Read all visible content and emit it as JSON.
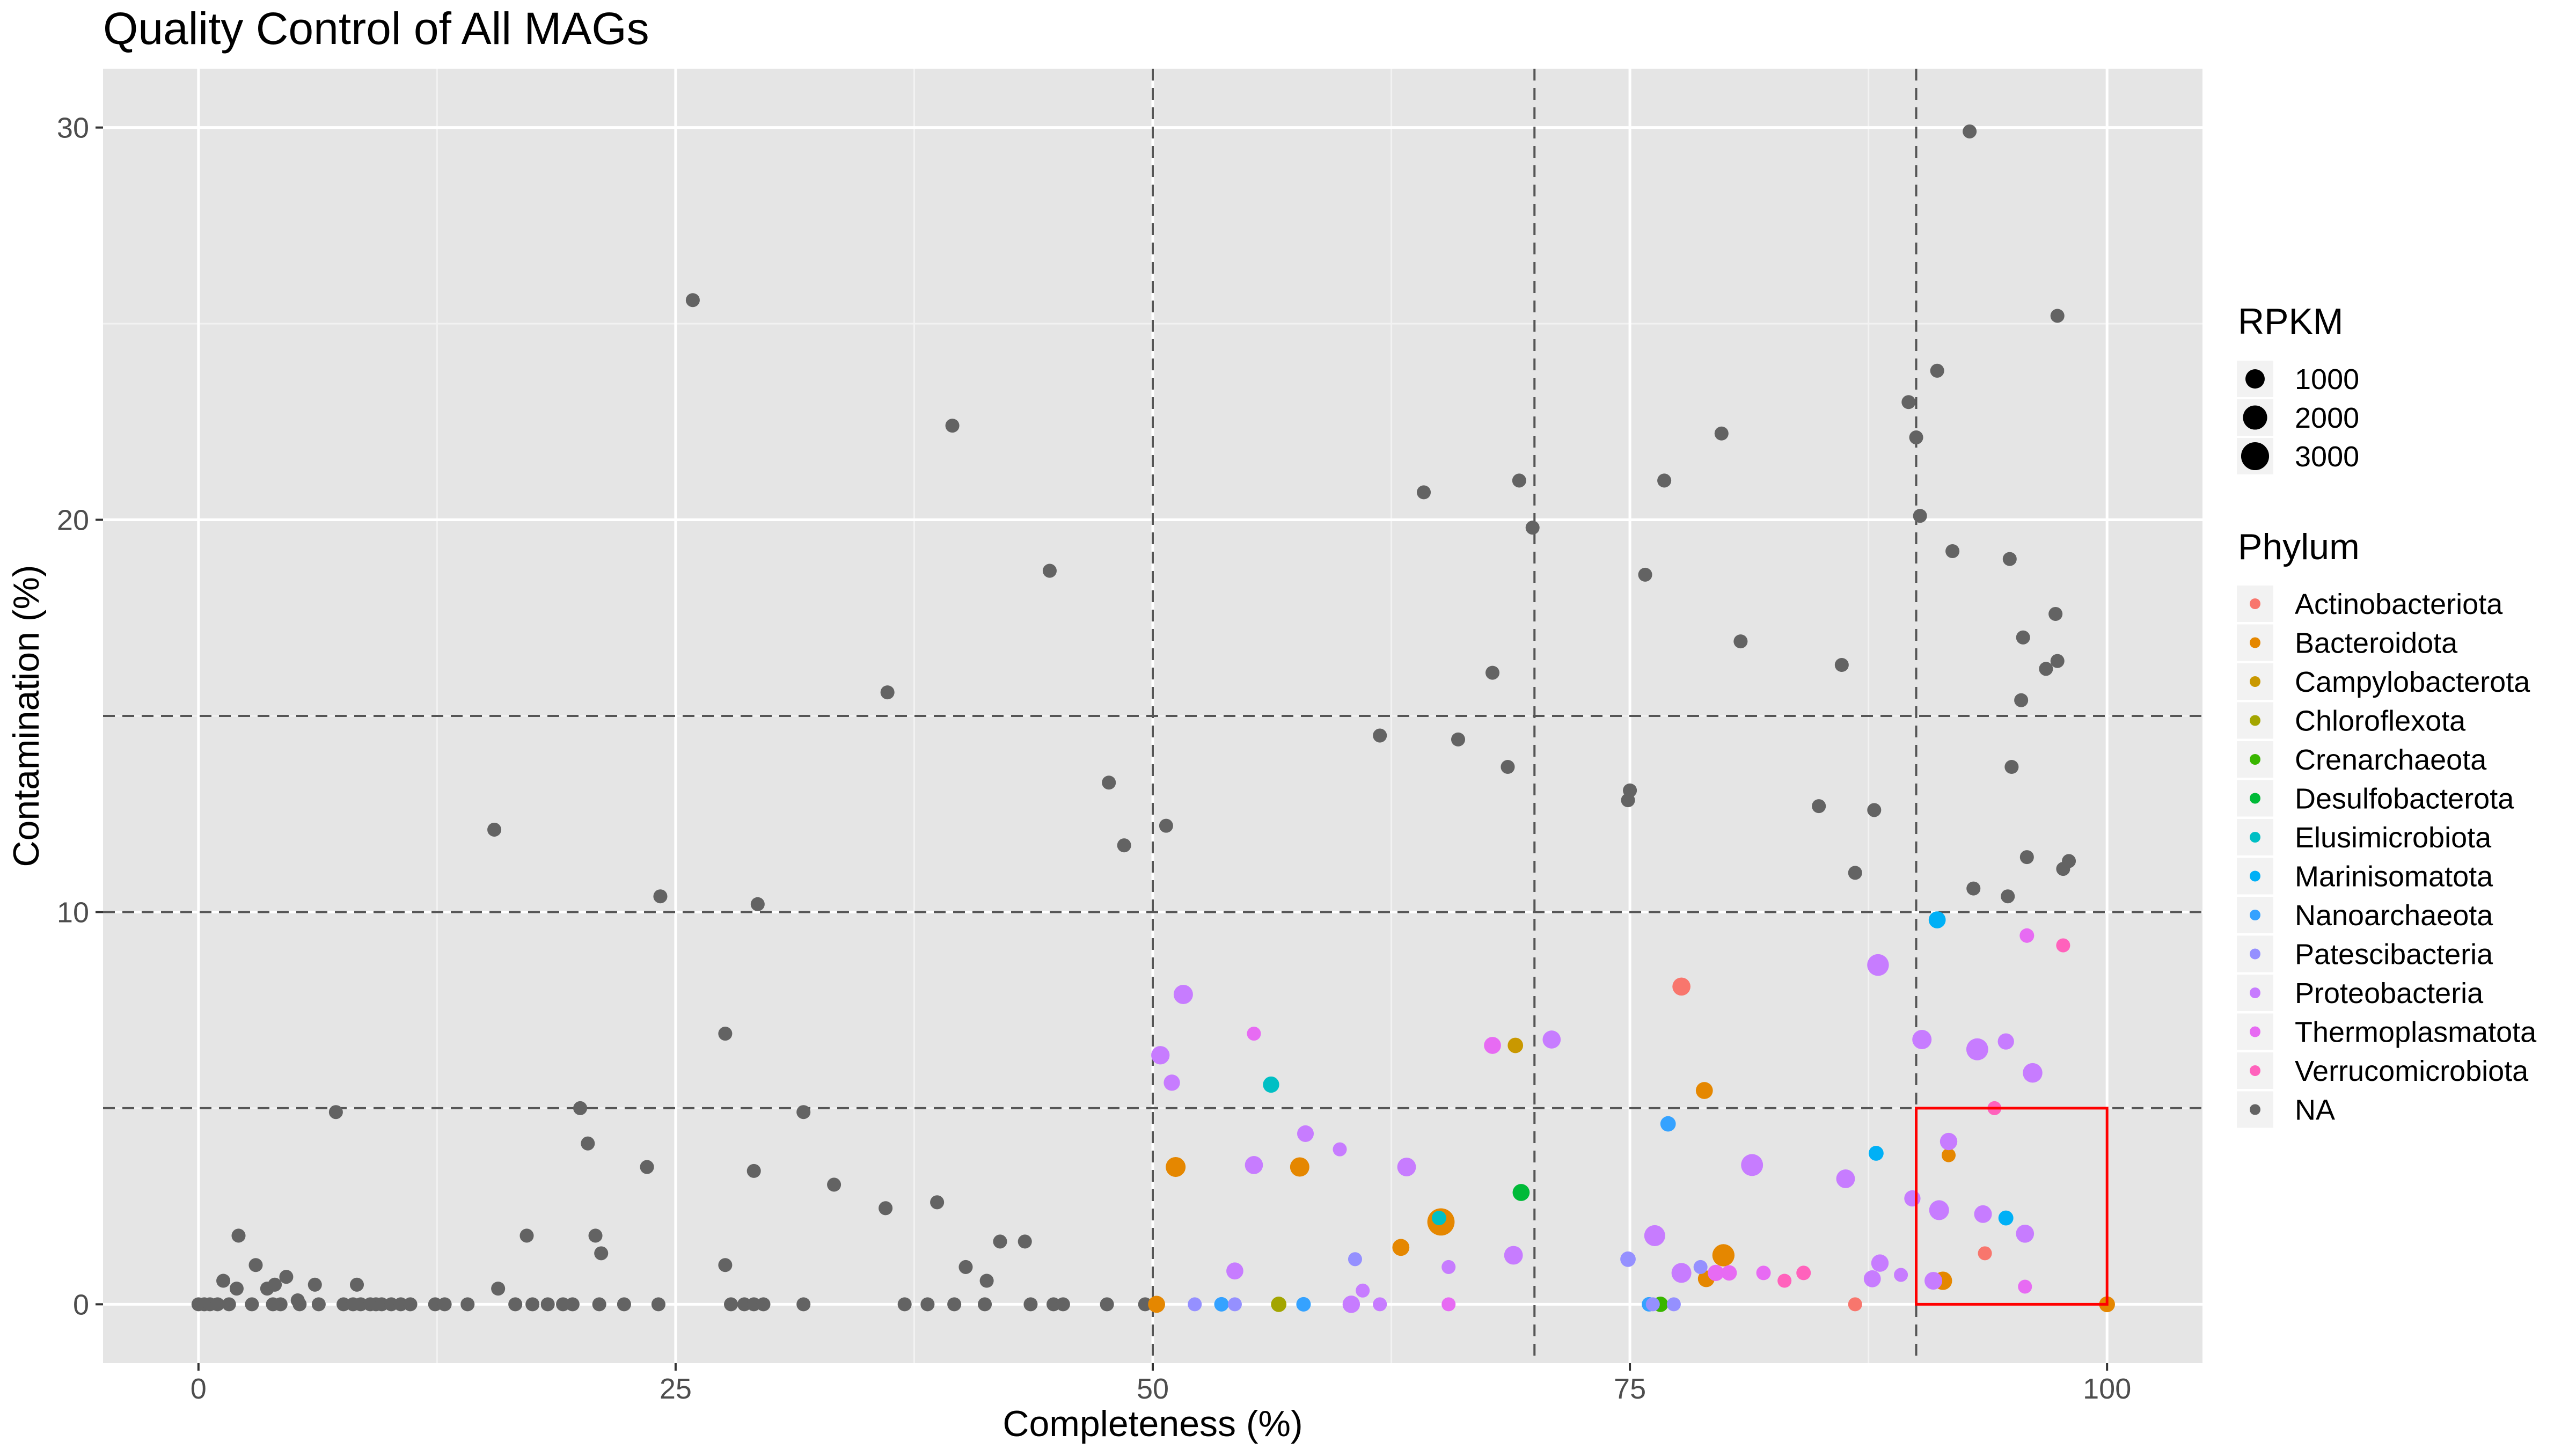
{
  "chart_data": {
    "type": "scatter",
    "title": "Quality Control of All MAGs",
    "xlabel": "Completeness (%)",
    "ylabel": "Contamination (%)",
    "xlim": [
      -5,
      105
    ],
    "ylim": [
      -1.5,
      31.5
    ],
    "x_ticks": [
      0,
      25,
      50,
      75,
      100
    ],
    "y_ticks": [
      0,
      10,
      20,
      30
    ],
    "grid": true,
    "background_color": "#e5e5e5",
    "vlines": [
      50,
      70,
      90
    ],
    "hlines": [
      5,
      10,
      15
    ],
    "highlight_box": {
      "x": [
        90,
        100
      ],
      "y": [
        0,
        5
      ],
      "color": "#ff0000"
    },
    "size_legend": {
      "title": "RPKM",
      "values": [
        1000,
        2000,
        3000
      ]
    },
    "color_legend": {
      "title": "Phylum",
      "position": "right",
      "entries": [
        {
          "name": "Actinobacteriota",
          "color": "#F8766D"
        },
        {
          "name": "Bacteroidota",
          "color": "#E58700"
        },
        {
          "name": "Campylobacterota",
          "color": "#C99800"
        },
        {
          "name": "Chloroflexota",
          "color": "#A3A500"
        },
        {
          "name": "Crenarchaeota",
          "color": "#39B600"
        },
        {
          "name": "Desulfobacterota",
          "color": "#00BA38"
        },
        {
          "name": "Elusimicrobiota",
          "color": "#00BFC4"
        },
        {
          "name": "Marinisomatota",
          "color": "#00B0F6"
        },
        {
          "name": "Nanoarchaeota",
          "color": "#35A2FF"
        },
        {
          "name": "Patescibacteria",
          "color": "#9590FF"
        },
        {
          "name": "Proteobacteria",
          "color": "#C77CFF"
        },
        {
          "name": "Thermoplasmatota",
          "color": "#E76BF3"
        },
        {
          "name": "Verrucomicrobiota",
          "color": "#FF62BC"
        },
        {
          "name": "NA",
          "color": "#636363"
        }
      ]
    },
    "series": [
      {
        "name": "NA",
        "points": [
          [
            0,
            0,
            300
          ],
          [
            0.3,
            0,
            300
          ],
          [
            0.6,
            0,
            300
          ],
          [
            1.0,
            0,
            300
          ],
          [
            1.3,
            0.6,
            300
          ],
          [
            1.6,
            0,
            300
          ],
          [
            2.0,
            0.4,
            300
          ],
          [
            2.1,
            1.75,
            300
          ],
          [
            2.8,
            0,
            300
          ],
          [
            3.0,
            1.0,
            300
          ],
          [
            3.6,
            0.4,
            300
          ],
          [
            3.9,
            0,
            300
          ],
          [
            4.0,
            0.5,
            300
          ],
          [
            4.3,
            0,
            300
          ],
          [
            4.6,
            0.7,
            300
          ],
          [
            5.2,
            0.1,
            300
          ],
          [
            5.3,
            0,
            300
          ],
          [
            6.1,
            0.5,
            300
          ],
          [
            6.3,
            0,
            300
          ],
          [
            7.2,
            4.9,
            300
          ],
          [
            7.6,
            0,
            300
          ],
          [
            8.1,
            0,
            300
          ],
          [
            8.3,
            0.5,
            300
          ],
          [
            8.5,
            0,
            300
          ],
          [
            9.0,
            0,
            300
          ],
          [
            9.3,
            0,
            300
          ],
          [
            9.6,
            0,
            300
          ],
          [
            10.1,
            0,
            300
          ],
          [
            10.6,
            0,
            300
          ],
          [
            11.1,
            0,
            300
          ],
          [
            12.4,
            0,
            300
          ],
          [
            12.9,
            0,
            300
          ],
          [
            14.1,
            0,
            300
          ],
          [
            15.5,
            12.1,
            300
          ],
          [
            15.7,
            0.4,
            300
          ],
          [
            16.6,
            0,
            300
          ],
          [
            17.2,
            1.75,
            300
          ],
          [
            17.5,
            0,
            300
          ],
          [
            18.3,
            0,
            300
          ],
          [
            19.1,
            0,
            300
          ],
          [
            19.6,
            0,
            300
          ],
          [
            20.0,
            5.0,
            300
          ],
          [
            20.4,
            4.1,
            300
          ],
          [
            20.8,
            1.75,
            300
          ],
          [
            21.0,
            0,
            300
          ],
          [
            21.1,
            1.3,
            300
          ],
          [
            22.3,
            0,
            300
          ],
          [
            23.5,
            3.5,
            300
          ],
          [
            24.1,
            0,
            300
          ],
          [
            24.2,
            10.4,
            300
          ],
          [
            25.9,
            25.6,
            300
          ],
          [
            27.6,
            6.9,
            300
          ],
          [
            27.6,
            1.0,
            300
          ],
          [
            27.9,
            0,
            300
          ],
          [
            28.6,
            0,
            300
          ],
          [
            29.1,
            0,
            300
          ],
          [
            29.1,
            3.4,
            300
          ],
          [
            29.3,
            10.2,
            300
          ],
          [
            29.6,
            0,
            300
          ],
          [
            31.7,
            4.9,
            300
          ],
          [
            31.7,
            0,
            300
          ],
          [
            33.3,
            3.05,
            300
          ],
          [
            36.0,
            2.45,
            300
          ],
          [
            36.1,
            15.6,
            300
          ],
          [
            37.0,
            0,
            300
          ],
          [
            38.2,
            0,
            300
          ],
          [
            38.7,
            2.6,
            300
          ],
          [
            39.5,
            22.4,
            300
          ],
          [
            39.6,
            0,
            300
          ],
          [
            40.2,
            0.95,
            300
          ],
          [
            41.2,
            0,
            300
          ],
          [
            41.3,
            0.6,
            300
          ],
          [
            42.0,
            1.6,
            300
          ],
          [
            43.3,
            1.6,
            300
          ],
          [
            43.6,
            0,
            300
          ],
          [
            44.6,
            18.7,
            300
          ],
          [
            44.8,
            0,
            300
          ],
          [
            45.3,
            0,
            300
          ],
          [
            47.6,
            0,
            300
          ],
          [
            47.7,
            13.3,
            300
          ],
          [
            48.5,
            11.7,
            300
          ],
          [
            49.6,
            0,
            300
          ],
          [
            50.7,
            12.2,
            300
          ],
          [
            61.9,
            14.5,
            300
          ],
          [
            64.2,
            20.7,
            300
          ],
          [
            66.0,
            14.4,
            300
          ],
          [
            67.8,
            16.1,
            300
          ],
          [
            68.6,
            13.7,
            300
          ],
          [
            69.2,
            21.0,
            300
          ],
          [
            69.9,
            19.8,
            300
          ],
          [
            74.9,
            12.85,
            300
          ],
          [
            75.0,
            13.1,
            300
          ],
          [
            75.8,
            18.6,
            300
          ],
          [
            76.8,
            21.0,
            300
          ],
          [
            79.8,
            22.2,
            300
          ],
          [
            80.8,
            16.9,
            300
          ],
          [
            84.9,
            12.7,
            300
          ],
          [
            86.1,
            16.3,
            300
          ],
          [
            86.8,
            11.0,
            300
          ],
          [
            87.8,
            12.6,
            300
          ],
          [
            89.6,
            23.0,
            300
          ],
          [
            90.0,
            22.1,
            300
          ],
          [
            90.2,
            20.1,
            300
          ],
          [
            91.1,
            23.8,
            300
          ],
          [
            91.9,
            19.2,
            300
          ],
          [
            92.8,
            29.9,
            300
          ],
          [
            93.0,
            10.6,
            300
          ],
          [
            94.8,
            10.4,
            300
          ],
          [
            94.9,
            19.0,
            300
          ],
          [
            95.0,
            13.7,
            300
          ],
          [
            95.5,
            15.4,
            300
          ],
          [
            95.6,
            17.0,
            300
          ],
          [
            95.8,
            11.4,
            300
          ],
          [
            96.8,
            16.2,
            300
          ],
          [
            97.3,
            17.6,
            300
          ],
          [
            97.4,
            25.2,
            300
          ],
          [
            97.4,
            16.4,
            300
          ],
          [
            97.7,
            11.1,
            300
          ],
          [
            98.0,
            11.3,
            300
          ]
        ]
      },
      {
        "name": "Actinobacteriota",
        "points": [
          [
            77.7,
            8.1,
            800
          ],
          [
            86.8,
            0,
            300
          ],
          [
            93.6,
            1.3,
            300
          ]
        ]
      },
      {
        "name": "Bacteroidota",
        "points": [
          [
            50.2,
            0,
            650
          ],
          [
            51.2,
            3.5,
            1100
          ],
          [
            57.7,
            3.5,
            1000
          ],
          [
            63.0,
            1.45,
            650
          ],
          [
            65.1,
            2.1,
            2800
          ],
          [
            78.9,
            5.45,
            650
          ],
          [
            79.0,
            0.65,
            600
          ],
          [
            79.9,
            1.25,
            1550
          ],
          [
            91.4,
            0.6,
            850
          ],
          [
            91.7,
            3.8,
            300
          ],
          [
            100,
            0,
            500
          ]
        ]
      },
      {
        "name": "Campylobacterota",
        "points": [
          [
            69.0,
            6.6,
            450
          ]
        ]
      },
      {
        "name": "Chloroflexota",
        "points": [
          [
            56.6,
            0,
            450
          ]
        ]
      },
      {
        "name": "Crenarchaeota",
        "points": [
          [
            76.6,
            0,
            450
          ]
        ]
      },
      {
        "name": "Desulfobacterota",
        "points": [
          [
            69.3,
            2.85,
            650
          ]
        ]
      },
      {
        "name": "Elusimicrobiota",
        "points": [
          [
            56.2,
            5.6,
            550
          ],
          [
            65.0,
            2.2,
            350
          ]
        ]
      },
      {
        "name": "Marinisomatota",
        "points": [
          [
            87.9,
            3.85,
            400
          ],
          [
            91.1,
            9.8,
            650
          ],
          [
            94.7,
            2.2,
            400
          ]
        ]
      },
      {
        "name": "Nanoarchaeota",
        "points": [
          [
            53.6,
            0,
            350
          ],
          [
            57.9,
            0,
            350
          ],
          [
            76.0,
            0,
            350
          ],
          [
            77.0,
            4.6,
            450
          ]
        ]
      },
      {
        "name": "Patescibacteria",
        "points": [
          [
            52.2,
            0,
            300
          ],
          [
            54.3,
            0,
            300
          ],
          [
            60.6,
            1.15,
            300
          ],
          [
            74.9,
            1.15,
            450
          ],
          [
            76.2,
            0,
            300
          ],
          [
            77.3,
            0,
            300
          ],
          [
            78.7,
            0.95,
            300
          ]
        ]
      },
      {
        "name": "Proteobacteria",
        "points": [
          [
            50.4,
            6.35,
            850
          ],
          [
            51.0,
            5.65,
            550
          ],
          [
            51.6,
            7.9,
            1000
          ],
          [
            54.3,
            0.85,
            650
          ],
          [
            55.3,
            3.55,
            800
          ],
          [
            58.0,
            4.35,
            600
          ],
          [
            59.8,
            3.95,
            300
          ],
          [
            60.4,
            0,
            700
          ],
          [
            61.0,
            0.35,
            300
          ],
          [
            61.9,
            0,
            300
          ],
          [
            63.3,
            3.5,
            900
          ],
          [
            65.5,
            0.95,
            300
          ],
          [
            68.9,
            1.25,
            900
          ],
          [
            70.9,
            6.75,
            800
          ],
          [
            76.3,
            1.75,
            1300
          ],
          [
            77.7,
            0.8,
            1100
          ],
          [
            81.4,
            3.55,
            1500
          ],
          [
            86.3,
            3.2,
            900
          ],
          [
            87.7,
            0.65,
            650
          ],
          [
            88.0,
            8.65,
            1450
          ],
          [
            88.1,
            1.05,
            700
          ],
          [
            89.2,
            0.75,
            300
          ],
          [
            89.8,
            2.7,
            550
          ],
          [
            90.3,
            6.75,
            1000
          ],
          [
            90.9,
            0.6,
            750
          ],
          [
            91.2,
            2.4,
            1100
          ],
          [
            91.7,
            4.15,
            700
          ],
          [
            93.2,
            6.5,
            1500
          ],
          [
            93.5,
            2.3,
            750
          ],
          [
            94.7,
            6.7,
            550
          ],
          [
            95.7,
            1.8,
            800
          ],
          [
            96.1,
            5.9,
            1050
          ]
        ]
      },
      {
        "name": "Thermoplasmatota",
        "points": [
          [
            55.3,
            6.9,
            300
          ],
          [
            65.5,
            0,
            300
          ],
          [
            67.8,
            6.6,
            650
          ],
          [
            79.5,
            0.8,
            550
          ],
          [
            80.2,
            0.8,
            450
          ],
          [
            82.0,
            0.8,
            350
          ],
          [
            95.7,
            0.45,
            300
          ],
          [
            95.8,
            9.4,
            350
          ]
        ]
      },
      {
        "name": "Verrucomicrobiota",
        "points": [
          [
            83.1,
            0.6,
            300
          ],
          [
            84.1,
            0.8,
            350
          ],
          [
            94.1,
            5.0,
            300
          ],
          [
            97.7,
            9.15,
            300
          ]
        ]
      }
    ]
  }
}
